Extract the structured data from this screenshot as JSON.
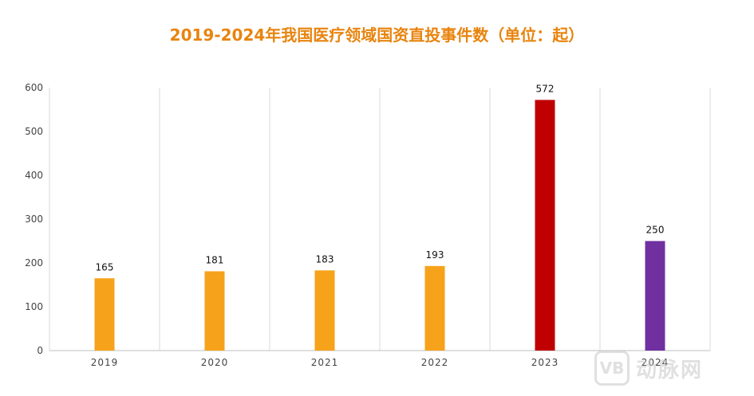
{
  "chart_data": {
    "type": "bar",
    "title": "2019-2024年我国医疗领域国资直投事件数（单位：起）",
    "xlabel": "",
    "ylabel": "",
    "categories": [
      "2019",
      "2020",
      "2021",
      "2022",
      "2023",
      "2024"
    ],
    "values": [
      165,
      181,
      183,
      193,
      572,
      250
    ],
    "bar_colors": [
      "#f7a21b",
      "#f7a21b",
      "#f7a21b",
      "#f7a21b",
      "#c00000",
      "#7030a0"
    ],
    "ylim": [
      0,
      600
    ],
    "yticks": [
      0,
      100,
      200,
      300,
      400,
      500,
      600
    ],
    "grid": "vertical",
    "legend": "none",
    "data_labels": true
  },
  "watermark": {
    "logo_text": "VB",
    "brand_text": "动脉网"
  }
}
